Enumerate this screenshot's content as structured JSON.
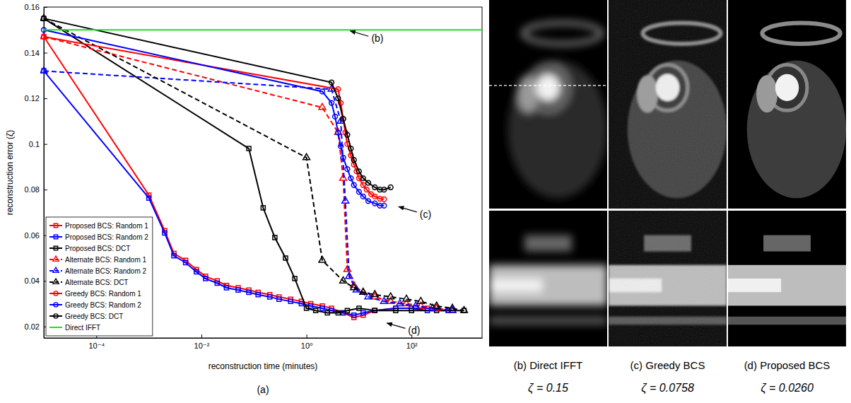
{
  "chart_data": {
    "type": "line",
    "caption": "(a)",
    "x_label": "reconstruction time (minutes)",
    "y_label": "reconstruction error (ζ)",
    "log": "x",
    "grid": false,
    "legend": "lower left",
    "xlim": [
      1e-05,
      2200
    ],
    "ylim": [
      0.015,
      0.16
    ],
    "xticks": [
      {
        "value": 0.0001,
        "label": "10⁻⁴"
      },
      {
        "value": 0.01,
        "label": "10⁻²"
      },
      {
        "value": 1,
        "label": "10⁰"
      },
      {
        "value": 100,
        "label": "10²"
      }
    ],
    "yticks": [
      0.02,
      0.04,
      0.06,
      0.08,
      0.1,
      0.12,
      0.14,
      0.16
    ],
    "series": [
      {
        "name": "Proposed BCS: Random 1",
        "color": "#ff0000",
        "marker": "square",
        "line_style": "solid",
        "x": [
          1e-05,
          0.001,
          0.002,
          0.003,
          0.005,
          0.008,
          0.012,
          0.02,
          0.03,
          0.05,
          0.08,
          0.12,
          0.2,
          0.3,
          0.5,
          0.8,
          1.2,
          2,
          3,
          5,
          8,
          12,
          20,
          50,
          100,
          200,
          500
        ],
        "values": [
          0.147,
          0.0776,
          0.062,
          0.052,
          0.049,
          0.045,
          0.042,
          0.04,
          0.038,
          0.037,
          0.036,
          0.035,
          0.034,
          0.033,
          0.032,
          0.031,
          0.03,
          0.029,
          0.028,
          0.026,
          0.024,
          0.025,
          0.027,
          0.028,
          0.028,
          0.028,
          0.027
        ]
      },
      {
        "name": "Proposed BCS: Random 2",
        "color": "#0000ff",
        "marker": "square",
        "line_style": "solid",
        "x": [
          1e-05,
          0.001,
          0.002,
          0.003,
          0.005,
          0.008,
          0.012,
          0.02,
          0.03,
          0.05,
          0.08,
          0.12,
          0.2,
          0.3,
          0.5,
          0.8,
          1.2,
          2,
          3,
          5,
          8,
          12,
          20,
          50,
          100,
          200,
          500
        ],
        "values": [
          0.132,
          0.0763,
          0.061,
          0.051,
          0.048,
          0.044,
          0.041,
          0.039,
          0.037,
          0.036,
          0.035,
          0.034,
          0.033,
          0.032,
          0.031,
          0.03,
          0.029,
          0.028,
          0.027,
          0.026,
          0.025,
          0.026,
          0.027,
          0.028,
          0.028,
          0.027,
          0.027
        ]
      },
      {
        "name": "Proposed BCS: DCT",
        "color": "#000000",
        "marker": "square",
        "line_style": "solid",
        "x": [
          1e-05,
          0.08,
          0.15,
          0.25,
          0.4,
          0.6,
          1,
          1.5,
          2.5,
          4,
          6,
          10,
          20,
          50,
          100,
          300,
          1000
        ],
        "values": [
          0.155,
          0.098,
          0.072,
          0.059,
          0.05,
          0.041,
          0.028,
          0.027,
          0.026,
          0.026,
          0.027,
          0.028,
          0.027,
          0.027,
          0.027,
          0.027,
          0.027
        ]
      },
      {
        "name": "Alternate BCS: Random 1",
        "color": "#ff0000",
        "marker": "triangle",
        "line_style": "dashed",
        "x": [
          1e-05,
          2,
          4,
          5,
          6,
          8,
          12,
          20,
          40,
          80,
          150,
          300,
          600
        ],
        "values": [
          0.147,
          0.116,
          0.105,
          0.085,
          0.045,
          0.038,
          0.035,
          0.033,
          0.031,
          0.03,
          0.029,
          0.028,
          0.027
        ]
      },
      {
        "name": "Alternate BCS: Random 2",
        "color": "#0000ff",
        "marker": "triangle",
        "line_style": "dashed",
        "x": [
          1e-05,
          3,
          4.5,
          5.5,
          6.5,
          9,
          15,
          30,
          60,
          120,
          250,
          600
        ],
        "values": [
          0.132,
          0.124,
          0.11,
          0.075,
          0.042,
          0.036,
          0.033,
          0.031,
          0.03,
          0.029,
          0.028,
          0.027
        ]
      },
      {
        "name": "Alternate BCS: DCT",
        "color": "#000000",
        "marker": "triangle",
        "line_style": "dashed",
        "x": [
          1e-05,
          1,
          2,
          5,
          8,
          12,
          20,
          40,
          80,
          150,
          300,
          600,
          1000
        ],
        "values": [
          0.155,
          0.094,
          0.049,
          0.04,
          0.037,
          0.035,
          0.034,
          0.033,
          0.032,
          0.031,
          0.029,
          0.028,
          0.027
        ]
      },
      {
        "name": "Greedy BCS: Random 1",
        "color": "#ff0000",
        "marker": "circle",
        "line_style": "solid",
        "x": [
          1e-05,
          4,
          4.5,
          5,
          5.5,
          6,
          7,
          8,
          9,
          10,
          12,
          14,
          17,
          20,
          25,
          30
        ],
        "values": [
          0.147,
          0.124,
          0.118,
          0.111,
          0.105,
          0.1,
          0.095,
          0.091,
          0.088,
          0.085,
          0.082,
          0.08,
          0.078,
          0.077,
          0.076,
          0.0758
        ]
      },
      {
        "name": "Greedy BCS: Random 2",
        "color": "#0000ff",
        "marker": "circle",
        "line_style": "solid",
        "x": [
          1e-05,
          2,
          3,
          3.5,
          4,
          4.5,
          5,
          6,
          7,
          8,
          10,
          12,
          15,
          20,
          25,
          30
        ],
        "values": [
          0.15,
          0.123,
          0.118,
          0.112,
          0.105,
          0.099,
          0.094,
          0.089,
          0.085,
          0.082,
          0.079,
          0.077,
          0.075,
          0.074,
          0.073,
          0.073
        ]
      },
      {
        "name": "Greedy BCS: DCT",
        "color": "#000000",
        "marker": "circle",
        "line_style": "solid",
        "x": [
          1e-05,
          3,
          4,
          5,
          6,
          7,
          8,
          10,
          12,
          15,
          20,
          25,
          30,
          40
        ],
        "values": [
          0.155,
          0.127,
          0.12,
          0.111,
          0.104,
          0.098,
          0.093,
          0.088,
          0.085,
          0.083,
          0.081,
          0.08,
          0.08,
          0.081
        ]
      },
      {
        "name": "Direct IFFT",
        "color": "#22dd22",
        "marker": "none",
        "line_style": "solid",
        "x": [
          1e-05,
          2200
        ],
        "values": [
          0.15,
          0.15
        ]
      }
    ],
    "annotations": [
      {
        "text": "(b)",
        "x": 6,
        "y": 0.15
      },
      {
        "text": "(c)",
        "x": 50,
        "y": 0.073
      },
      {
        "text": "(d)",
        "x": 30,
        "y": 0.022
      }
    ]
  },
  "images": [
    {
      "caption": "(b) Direct IFFT",
      "error": "ζ = 0.15"
    },
    {
      "caption": "(c) Greedy BCS",
      "error": "ζ = 0.0758"
    },
    {
      "caption": "(d) Proposed BCS",
      "error": "ζ = 0.0260"
    }
  ]
}
